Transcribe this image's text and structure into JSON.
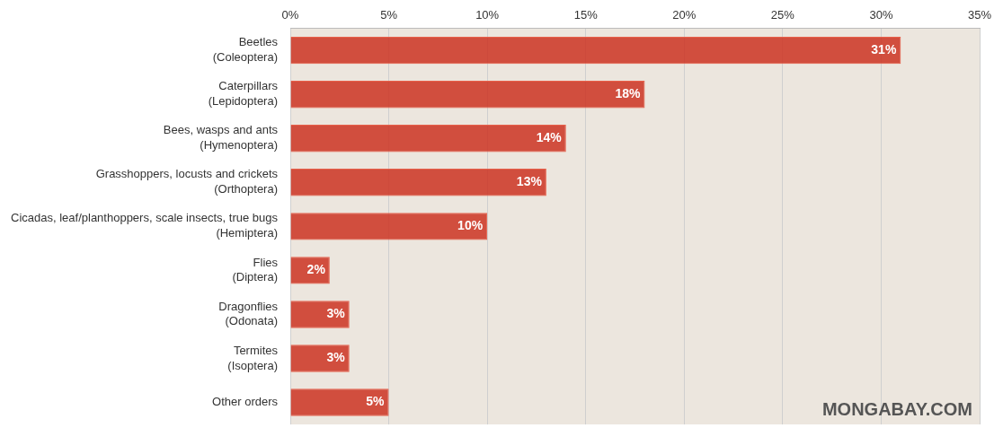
{
  "chart_data": {
    "type": "bar",
    "orientation": "horizontal",
    "categories": [
      "Beetles (Coleoptera)",
      "Caterpillars (Lepidoptera)",
      "Bees, wasps and ants (Hymenoptera)",
      "Grasshoppers, locusts and crickets (Orthoptera)",
      "Cicadas, leaf/planthoppers, scale insects, true bugs (Hemiptera)",
      "Flies (Diptera)",
      "Dragonflies (Odonata)",
      "Termites (Isoptera)",
      "Other orders"
    ],
    "values": [
      31,
      18,
      14,
      13,
      10,
      2,
      3,
      3,
      5
    ],
    "value_labels": [
      "31%",
      "18%",
      "14%",
      "13%",
      "10%",
      "2%",
      "3%",
      "3%",
      "5%"
    ],
    "data_labels": true,
    "color": "#cc3322",
    "xlim": [
      0,
      35
    ],
    "xticks": [
      {
        "value": 0,
        "label": "0%"
      },
      {
        "value": 5,
        "label": "5%"
      },
      {
        "value": 10,
        "label": "10%"
      },
      {
        "value": 15,
        "label": "15%"
      },
      {
        "value": 20,
        "label": "20%"
      },
      {
        "value": 25,
        "label": "25%"
      },
      {
        "value": 30,
        "label": "30%"
      },
      {
        "value": 35,
        "label": "35%"
      }
    ],
    "grid": true,
    "annotations": [
      "MONGABAY.COM"
    ]
  }
}
